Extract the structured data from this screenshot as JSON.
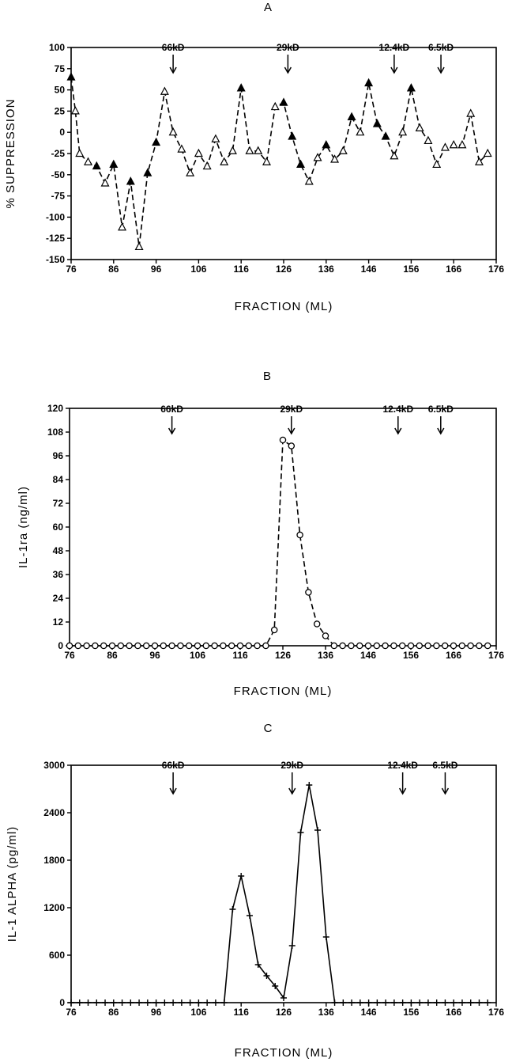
{
  "chart_data": [
    {
      "type": "line",
      "panel_label": "A",
      "xlabel": "FRACTION (ML)",
      "ylabel": "% SUPPRESSION",
      "xlim": [
        76,
        176
      ],
      "ylim": [
        -150,
        100
      ],
      "x_ticks": [
        76,
        86,
        96,
        106,
        116,
        126,
        136,
        146,
        156,
        166,
        176
      ],
      "y_ticks": [
        -150,
        -125,
        -100,
        -75,
        -50,
        -25,
        0,
        25,
        50,
        75,
        100
      ],
      "line_style": "dashed",
      "marker": "triangle",
      "size_markers": [
        {
          "label": "66kD",
          "x": 100
        },
        {
          "label": "29kD",
          "x": 127
        },
        {
          "label": "12.4kD",
          "x": 152
        },
        {
          "label": "6.5kD",
          "x": 163
        }
      ],
      "series": [
        {
          "x": [
            76,
            77,
            78,
            80,
            82,
            84,
            86,
            88,
            90,
            92,
            94,
            96,
            98,
            100,
            102,
            104,
            106,
            108,
            110,
            112,
            114,
            116,
            118,
            120,
            122,
            124,
            126,
            128,
            130,
            132,
            134,
            136,
            138,
            140,
            142,
            144,
            146,
            148,
            150,
            152,
            154,
            156,
            158,
            160,
            162,
            164,
            166,
            168,
            170,
            172,
            174
          ],
          "y": [
            65,
            25,
            -25,
            -35,
            -40,
            -60,
            -38,
            -112,
            -58,
            -135,
            -48,
            -12,
            48,
            0,
            -20,
            -48,
            -25,
            -40,
            -8,
            -35,
            -22,
            52,
            -22,
            -22,
            -35,
            30,
            35,
            -5,
            -38,
            -58,
            -30,
            -15,
            -32,
            -22,
            18,
            0,
            58,
            10,
            -5,
            -28,
            0,
            52,
            5,
            -10,
            -38,
            -18,
            -15,
            -15,
            22,
            -35,
            -25
          ],
          "filled": [
            true,
            false,
            false,
            false,
            true,
            false,
            true,
            false,
            true,
            false,
            true,
            true,
            false,
            false,
            false,
            false,
            false,
            false,
            false,
            false,
            false,
            true,
            false,
            false,
            false,
            false,
            true,
            true,
            true,
            false,
            false,
            true,
            false,
            false,
            true,
            false,
            true,
            true,
            true,
            false,
            false,
            true,
            false,
            false,
            false,
            false,
            false,
            false,
            false,
            false,
            false
          ]
        }
      ]
    },
    {
      "type": "line",
      "panel_label": "B",
      "xlabel": "FRACTION (ML)",
      "ylabel": "IL-1ra (ng/ml)",
      "xlim": [
        76,
        176
      ],
      "ylim": [
        0,
        120
      ],
      "x_ticks": [
        76,
        86,
        96,
        106,
        116,
        126,
        136,
        146,
        156,
        166,
        176
      ],
      "y_ticks": [
        0,
        12,
        24,
        36,
        48,
        60,
        72,
        84,
        96,
        108,
        120
      ],
      "line_style": "dashed",
      "marker": "circle",
      "size_markers": [
        {
          "label": "66kD",
          "x": 100
        },
        {
          "label": "29kD",
          "x": 128
        },
        {
          "label": "12.4kD",
          "x": 153
        },
        {
          "label": "6.5kD",
          "x": 163
        }
      ],
      "series": [
        {
          "x": [
            76,
            78,
            80,
            82,
            84,
            86,
            88,
            90,
            92,
            94,
            96,
            98,
            100,
            102,
            104,
            106,
            108,
            110,
            112,
            114,
            116,
            118,
            120,
            122,
            124,
            126,
            128,
            130,
            132,
            134,
            136,
            138,
            140,
            142,
            144,
            146,
            148,
            150,
            152,
            154,
            156,
            158,
            160,
            162,
            164,
            166,
            168,
            170,
            172,
            174
          ],
          "y": [
            0,
            0,
            0,
            0,
            0,
            0,
            0,
            0,
            0,
            0,
            0,
            0,
            0,
            0,
            0,
            0,
            0,
            0,
            0,
            0,
            0,
            0,
            0,
            0,
            8,
            104,
            101,
            56,
            27,
            11,
            5,
            0,
            0,
            0,
            0,
            0,
            0,
            0,
            0,
            0,
            0,
            0,
            0,
            0,
            0,
            0,
            0,
            0,
            0,
            0
          ]
        }
      ]
    },
    {
      "type": "line",
      "panel_label": "C",
      "xlabel": "FRACTION (ML)",
      "ylabel": "IL-1 ALPHA (pg/ml)",
      "xlim": [
        76,
        176
      ],
      "ylim": [
        0,
        3000
      ],
      "x_ticks": [
        76,
        86,
        96,
        106,
        116,
        126,
        136,
        146,
        156,
        166,
        176
      ],
      "y_ticks": [
        0,
        600,
        1200,
        1800,
        2400,
        3000
      ],
      "line_style": "solid",
      "marker": "plus",
      "size_markers": [
        {
          "label": "66kD",
          "x": 100
        },
        {
          "label": "29kD",
          "x": 128
        },
        {
          "label": "12.4kD",
          "x": 154
        },
        {
          "label": "6.5kD",
          "x": 164
        }
      ],
      "series": [
        {
          "x": [
            76,
            78,
            80,
            82,
            84,
            86,
            88,
            90,
            92,
            94,
            96,
            98,
            100,
            102,
            104,
            106,
            108,
            110,
            112,
            114,
            116,
            118,
            120,
            122,
            124,
            126,
            128,
            130,
            132,
            134,
            136,
            138,
            140,
            142,
            144,
            146,
            148,
            150,
            152,
            154,
            156,
            158,
            160,
            162,
            164,
            166,
            168,
            170,
            172,
            174
          ],
          "y": [
            0,
            0,
            0,
            0,
            0,
            0,
            0,
            0,
            0,
            0,
            0,
            0,
            0,
            0,
            0,
            0,
            0,
            0,
            0,
            1180,
            1600,
            1100,
            480,
            340,
            210,
            60,
            720,
            2150,
            2750,
            2180,
            830,
            0,
            0,
            0,
            0,
            0,
            0,
            0,
            0,
            0,
            0,
            0,
            0,
            0,
            0,
            0,
            0,
            0,
            0,
            0
          ]
        }
      ]
    }
  ]
}
